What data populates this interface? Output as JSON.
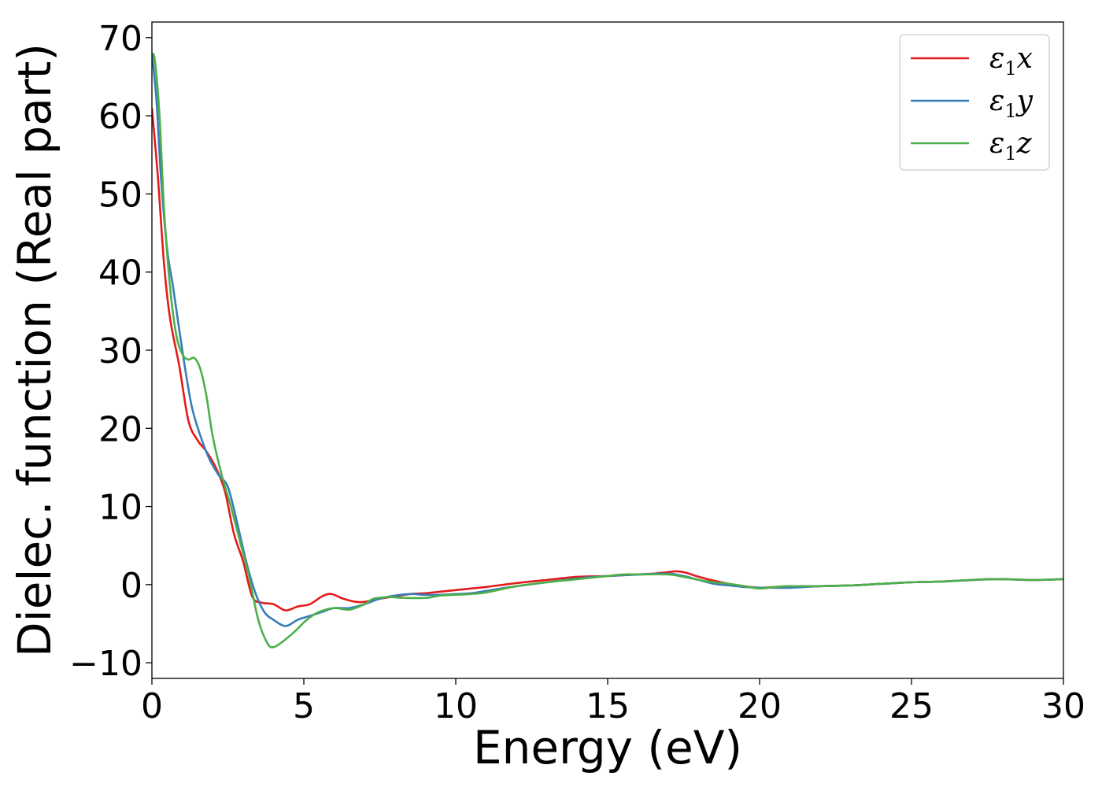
{
  "chart_data": {
    "type": "line",
    "title": "",
    "xlabel": "Energy (eV)",
    "ylabel": "Dielec. function (Real part)",
    "xlim": [
      0,
      30
    ],
    "ylim": [
      -12,
      72
    ],
    "xticks": [
      0,
      5,
      10,
      15,
      20,
      25,
      30
    ],
    "xtick_labels": [
      "0",
      "5",
      "10",
      "15",
      "20",
      "25",
      "30"
    ],
    "yticks": [
      -10,
      0,
      10,
      20,
      30,
      40,
      50,
      60,
      70
    ],
    "ytick_labels": [
      "−10",
      "0",
      "10",
      "20",
      "30",
      "40",
      "50",
      "60",
      "70"
    ],
    "grid": false,
    "legend_position": "top-right",
    "series": [
      {
        "name": "ε1x",
        "symbol": "ε",
        "subscript": "1",
        "suffix": "x",
        "color": "#e41a1c",
        "x": [
          0,
          0.2,
          0.4,
          0.6,
          0.9,
          1.2,
          1.5,
          1.8,
          2.1,
          2.4,
          2.7,
          3.0,
          3.3,
          3.6,
          4.0,
          4.4,
          4.8,
          5.2,
          5.6,
          5.9,
          6.3,
          6.7,
          7.0,
          7.5,
          8.0,
          8.5,
          9.0,
          9.5,
          10.0,
          10.5,
          11.0,
          12.0,
          13.0,
          14.0,
          15.0,
          16.0,
          16.5,
          17.0,
          17.3,
          17.6,
          18.0,
          18.5,
          19.0,
          19.5,
          20.0,
          20.5,
          21.0,
          22.0,
          23.0,
          24.0,
          25.0,
          26.0,
          27.0,
          27.5,
          28.0,
          29.0,
          30.0
        ],
        "y": [
          61,
          52,
          41,
          34,
          28,
          21,
          18.5,
          17,
          15,
          12,
          6.5,
          3,
          -1.5,
          -2.3,
          -2.5,
          -3.3,
          -2.8,
          -2.5,
          -1.5,
          -1.2,
          -1.8,
          -2.2,
          -2.2,
          -1.8,
          -1.5,
          -1.2,
          -1.1,
          -0.9,
          -0.7,
          -0.5,
          -0.3,
          0.2,
          0.6,
          1.0,
          1.1,
          1.3,
          1.4,
          1.6,
          1.7,
          1.5,
          1.0,
          0.5,
          0.1,
          -0.2,
          -0.4,
          -0.3,
          -0.2,
          -0.2,
          -0.1,
          0.1,
          0.3,
          0.4,
          0.6,
          0.7,
          0.7,
          0.6,
          0.7
        ]
      },
      {
        "name": "ε1y",
        "symbol": "ε",
        "subscript": "1",
        "suffix": "y",
        "color": "#377eb8",
        "x": [
          0,
          0.15,
          0.3,
          0.5,
          0.7,
          1.0,
          1.3,
          1.6,
          1.9,
          2.2,
          2.5,
          2.8,
          3.1,
          3.4,
          3.7,
          4.0,
          4.4,
          4.8,
          5.2,
          5.6,
          6.0,
          6.5,
          7.0,
          7.5,
          8.0,
          8.5,
          9.0,
          9.5,
          10.0,
          10.5,
          11.0,
          12.0,
          13.0,
          14.0,
          15.0,
          16.0,
          17.0,
          17.5,
          18.0,
          18.5,
          19.0,
          19.5,
          20.0,
          20.5,
          21.0,
          22.0,
          23.0,
          24.0,
          25.0,
          26.0,
          27.0,
          27.5,
          28.0,
          29.0,
          30.0
        ],
        "y": [
          68,
          62,
          52,
          43,
          38,
          30,
          23,
          19,
          16,
          14,
          12.5,
          8,
          3,
          -1,
          -3.5,
          -4.5,
          -5.3,
          -4.5,
          -4,
          -3.5,
          -3,
          -3,
          -2.5,
          -1.8,
          -1.4,
          -1.2,
          -1.3,
          -1.3,
          -1.2,
          -1.1,
          -0.8,
          -0.2,
          0.3,
          0.8,
          1.1,
          1.3,
          1.4,
          1.1,
          0.6,
          0.1,
          -0.1,
          -0.3,
          -0.4,
          -0.4,
          -0.4,
          -0.2,
          -0.1,
          0.1,
          0.3,
          0.4,
          0.6,
          0.7,
          0.7,
          0.6,
          0.7
        ]
      },
      {
        "name": "ε1z",
        "symbol": "ε",
        "subscript": "1",
        "suffix": "z",
        "color": "#4daf4a",
        "x": [
          0,
          0.1,
          0.25,
          0.4,
          0.6,
          0.8,
          1.0,
          1.2,
          1.4,
          1.6,
          1.8,
          2.0,
          2.3,
          2.6,
          2.9,
          3.2,
          3.5,
          3.8,
          4.0,
          4.3,
          4.7,
          5.1,
          5.5,
          6.0,
          6.5,
          7.0,
          7.3,
          7.8,
          8.3,
          9.0,
          9.5,
          10.0,
          10.5,
          11.0,
          12.0,
          13.0,
          14.0,
          15.0,
          15.5,
          16.0,
          17.0,
          17.5,
          18.0,
          18.5,
          19.0,
          19.5,
          20.0,
          20.5,
          21.0,
          22.0,
          23.0,
          24.0,
          25.0,
          26.0,
          27.0,
          28.0,
          29.0,
          30.0
        ],
        "y": [
          68,
          67,
          60,
          48,
          38,
          32,
          29.5,
          28.8,
          29,
          27.5,
          24,
          19,
          14,
          10,
          5.5,
          1,
          -4.5,
          -7.5,
          -8,
          -7.3,
          -6,
          -4.5,
          -3.5,
          -3,
          -3.2,
          -2.5,
          -1.8,
          -1.6,
          -1.7,
          -1.7,
          -1.4,
          -1.3,
          -1.2,
          -1,
          -0.2,
          0.3,
          0.7,
          1.1,
          1.3,
          1.3,
          1.3,
          1.0,
          0.6,
          0.3,
          0.1,
          -0.2,
          -0.5,
          -0.3,
          -0.2,
          -0.2,
          -0.1,
          0.1,
          0.3,
          0.4,
          0.6,
          0.7,
          0.6,
          0.7
        ]
      }
    ]
  }
}
